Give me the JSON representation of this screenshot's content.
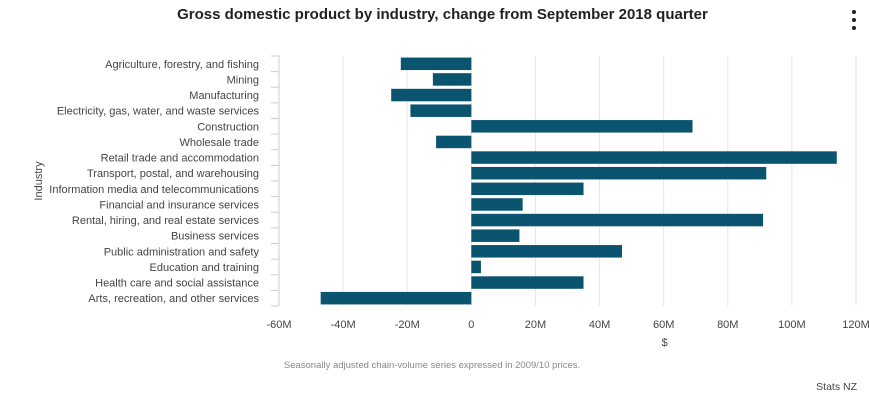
{
  "title": "Gross domestic product by industry, change from September 2018 quarter",
  "menu_icon": "menu-dots-icon",
  "caption": "Seasonally adjusted chain-volume series expressed in 2009/10 prices.",
  "credit": "Stats NZ",
  "colors": {
    "bar": "#0b5470",
    "grid": "#e6e6e6",
    "axis": "#cccccc"
  },
  "chart_data": {
    "type": "bar",
    "orientation": "horizontal",
    "title": "Gross domestic product by industry, change from September 2018 quarter",
    "xlabel": "$",
    "ylabel": "Industry",
    "xlim": [
      -60000000,
      120000000
    ],
    "grid": true,
    "x_ticks": [
      -60000000,
      -40000000,
      -20000000,
      0,
      20000000,
      40000000,
      60000000,
      80000000,
      100000000,
      120000000
    ],
    "x_tick_labels": [
      "-60M",
      "-40M",
      "-20M",
      "0",
      "20M",
      "40M",
      "60M",
      "80M",
      "100M",
      "120M"
    ],
    "categories": [
      "Agriculture, forestry, and fishing",
      "Mining",
      "Manufacturing",
      "Electricity, gas, water, and waste services",
      "Construction",
      "Wholesale trade",
      "Retail trade and accommodation",
      "Transport, postal, and warehousing",
      "Information media and telecommunications",
      "Financial and insurance services",
      "Rental, hiring, and real estate services",
      "Business services",
      "Public administration and safety",
      "Education and training",
      "Health care and social assistance",
      "Arts, recreation, and other services"
    ],
    "values": [
      -22000000,
      -12000000,
      -25000000,
      -19000000,
      69000000,
      -11000000,
      114000000,
      92000000,
      35000000,
      16000000,
      91000000,
      15000000,
      47000000,
      3000000,
      35000000,
      -47000000
    ]
  }
}
